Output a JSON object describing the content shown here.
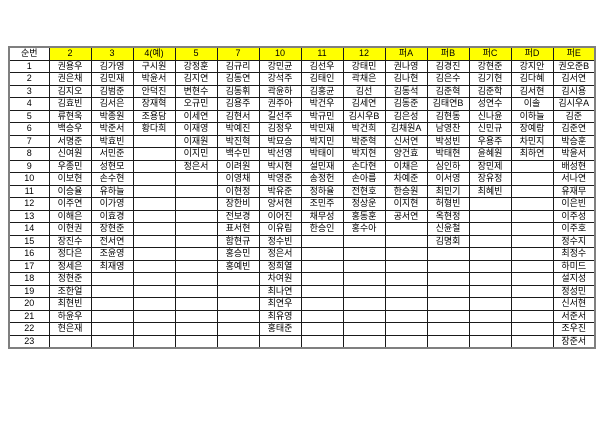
{
  "colors": {
    "header_fill": "#ffff00",
    "grid_border": "#1a1a1a",
    "outer_border": "#7f7f7f",
    "background": "#ffffff",
    "text": "#000000"
  },
  "table": {
    "headers": [
      "순번",
      "2",
      "3",
      "4(예)",
      "5",
      "7",
      "10",
      "11",
      "12",
      "퍼A",
      "퍼B",
      "퍼C",
      "퍼D",
      "퍼E"
    ],
    "rows": [
      [
        "1",
        "권용우",
        "김가영",
        "구시원",
        "강정훈",
        "김규리",
        "강민균",
        "김선우",
        "강태민",
        "권나영",
        "김경진",
        "강현준",
        "강지안",
        "권오준B"
      ],
      [
        "2",
        "권은채",
        "김민재",
        "박윤서",
        "김지연",
        "김동연",
        "강석주",
        "김태인",
        "곽채은",
        "김나현",
        "김은수",
        "김기현",
        "김다혜",
        "김서연"
      ],
      [
        "3",
        "김지오",
        "김범준",
        "안덕진",
        "변현수",
        "김동휘",
        "곽윤하",
        "김홍균",
        "김선",
        "김동석",
        "김준혁",
        "김준학",
        "김서현",
        "김시용"
      ],
      [
        "4",
        "김효빈",
        "김서은",
        "장재혁",
        "오규민",
        "김용주",
        "권주아",
        "박건우",
        "김세연",
        "김동준",
        "김태연B",
        "성연수",
        "이솔",
        "김시우A"
      ],
      [
        "5",
        "류현욱",
        "박종원",
        "조용담",
        "이세연",
        "김현서",
        "길선주",
        "박규민",
        "김시우B",
        "김은성",
        "김현동",
        "신나윤",
        "이하늘",
        "김준"
      ],
      [
        "6",
        "백승우",
        "박준서",
        "황다희",
        "이재영",
        "박예진",
        "김정우",
        "박민재",
        "박건희",
        "김채원A",
        "남영찬",
        "신민규",
        "장예람",
        "김준연"
      ],
      [
        "7",
        "서명준",
        "박효빈",
        "",
        "이재원",
        "박진혁",
        "박묘승",
        "박지민",
        "박준혁",
        "신서연",
        "박성빈",
        "우용주",
        "차민지",
        "박승훈"
      ],
      [
        "8",
        "신여원",
        "서민준",
        "",
        "이지민",
        "백수민",
        "박선영",
        "박태이",
        "박지현",
        "양건효",
        "박태현",
        "윤혜원",
        "최하연",
        "박윤서"
      ],
      [
        "9",
        "우종민",
        "성현모",
        "",
        "정은서",
        "이려원",
        "박시현",
        "설민재",
        "손다현",
        "이채은",
        "심인하",
        "장민제",
        "",
        "배성현"
      ],
      [
        "10",
        "이보현",
        "손수현",
        "",
        "",
        "이영채",
        "박영준",
        "송정헌",
        "손아름",
        "차예준",
        "이서영",
        "장유정",
        "",
        "서나연"
      ],
      [
        "11",
        "이승율",
        "유하늘",
        "",
        "",
        "이현정",
        "박유준",
        "정하율",
        "전현호",
        "한승원",
        "최민기",
        "최혜빈",
        "",
        "유재무"
      ],
      [
        "12",
        "이주연",
        "이가영",
        "",
        "",
        "장한비",
        "양서현",
        "조민주",
        "정상운",
        "이지현",
        "허형빈",
        "",
        "",
        "이은빈"
      ],
      [
        "13",
        "이해은",
        "이효경",
        "",
        "",
        "전보경",
        "이어진",
        "채무성",
        "홍동훈",
        "공서연",
        "옥현정",
        "",
        "",
        "이주성"
      ],
      [
        "14",
        "이현권",
        "장현준",
        "",
        "",
        "표서현",
        "이유림",
        "한승인",
        "홍수아",
        "",
        "신윤철",
        "",
        "",
        "이주호"
      ],
      [
        "15",
        "장진수",
        "전서연",
        "",
        "",
        "함현규",
        "정수빈",
        "",
        "",
        "",
        "김명회",
        "",
        "",
        "정수지"
      ],
      [
        "16",
        "정다은",
        "조윤영",
        "",
        "",
        "홍승민",
        "정은서",
        "",
        "",
        "",
        "",
        "",
        "",
        "최정수"
      ],
      [
        "17",
        "정세은",
        "최재영",
        "",
        "",
        "홍예빈",
        "정희열",
        "",
        "",
        "",
        "",
        "",
        "",
        "하미드"
      ],
      [
        "18",
        "정현준",
        "",
        "",
        "",
        "",
        "차여원",
        "",
        "",
        "",
        "",
        "",
        "",
        "설지성"
      ],
      [
        "19",
        "조한얼",
        "",
        "",
        "",
        "",
        "최나연",
        "",
        "",
        "",
        "",
        "",
        "",
        "정성민"
      ],
      [
        "20",
        "최현빈",
        "",
        "",
        "",
        "",
        "최연우",
        "",
        "",
        "",
        "",
        "",
        "",
        "신서현"
      ],
      [
        "21",
        "하윤우",
        "",
        "",
        "",
        "",
        "최유영",
        "",
        "",
        "",
        "",
        "",
        "",
        "서준서"
      ],
      [
        "22",
        "현은재",
        "",
        "",
        "",
        "",
        "홍태준",
        "",
        "",
        "",
        "",
        "",
        "",
        "조우진"
      ],
      [
        "23",
        "",
        "",
        "",
        "",
        "",
        "",
        "",
        "",
        "",
        "",
        "",
        "",
        "장준서"
      ]
    ]
  }
}
